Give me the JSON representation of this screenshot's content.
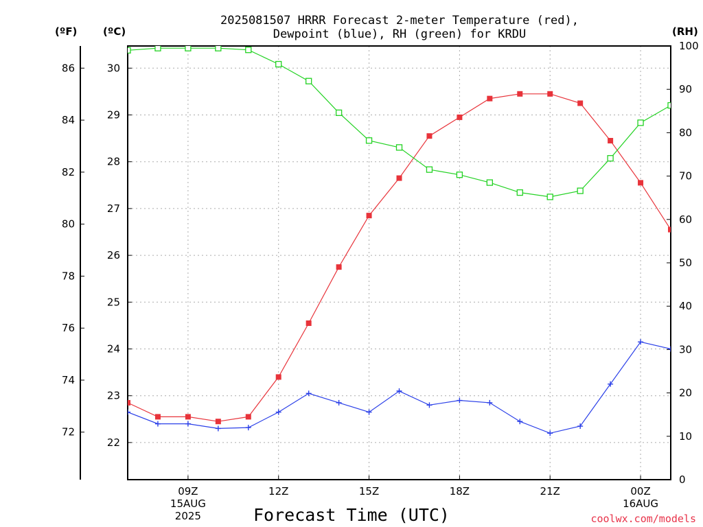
{
  "chart_data": {
    "type": "line",
    "title_lines": [
      "2025081507 HRRR Forecast 2-meter Temperature (red),",
      "Dewpoint (blue), RH (green) for KRDU"
    ],
    "xlabel": "Forecast Time (UTC)",
    "credit": "coolwx.com/models",
    "units": {
      "fahrenheit": "(ºF)",
      "celsius": "(ºC)",
      "rh": "(RH)"
    },
    "x_hours": [
      7,
      8,
      9,
      10,
      11,
      12,
      13,
      14,
      15,
      16,
      17,
      18,
      19,
      20,
      21,
      22,
      23,
      24,
      25
    ],
    "xlim": [
      7,
      25
    ],
    "x_ticks": [
      {
        "hour": 9,
        "lines": [
          "09Z",
          "15AUG",
          "2025"
        ]
      },
      {
        "hour": 12,
        "lines": [
          "12Z"
        ]
      },
      {
        "hour": 15,
        "lines": [
          "15Z"
        ]
      },
      {
        "hour": 18,
        "lines": [
          "18Z"
        ]
      },
      {
        "hour": 21,
        "lines": [
          "21Z"
        ]
      },
      {
        "hour": 24,
        "lines": [
          "00Z",
          "16AUG"
        ]
      }
    ],
    "y_celsius_ticks": [
      "22",
      "23",
      "24",
      "25",
      "26",
      "27",
      "28",
      "29",
      "30"
    ],
    "y_fahrenheit_ticks": [
      "72",
      "74",
      "76",
      "78",
      "80",
      "82",
      "84",
      "86"
    ],
    "y_rh_ticks": [
      "0",
      "10",
      "20",
      "30",
      "40",
      "50",
      "60",
      "70",
      "80",
      "90",
      "100"
    ],
    "ylim_celsius": [
      21.2,
      30.4
    ],
    "ylim_rh": [
      0,
      100
    ],
    "series": [
      {
        "name": "Temperature",
        "color": "#e8333a",
        "axis": "celsius",
        "marker": "filled-square",
        "values": [
          22.85,
          22.55,
          22.55,
          22.45,
          22.55,
          23.4,
          24.55,
          25.75,
          26.85,
          27.65,
          28.55,
          28.95,
          29.35,
          29.45,
          29.45,
          29.25,
          28.45,
          27.55,
          26.55
        ]
      },
      {
        "name": "Dewpoint",
        "color": "#2a3fe8",
        "axis": "celsius",
        "marker": "plus",
        "values": [
          22.65,
          22.4,
          22.4,
          22.3,
          22.32,
          22.65,
          23.05,
          22.85,
          22.65,
          23.1,
          22.8,
          22.9,
          22.85,
          22.45,
          22.2,
          22.35,
          23.25,
          24.15,
          24.0
        ]
      },
      {
        "name": "RH",
        "color": "#22d222",
        "axis": "rh",
        "marker": "open-square",
        "values": [
          99,
          99.5,
          99.5,
          99.5,
          99.1,
          95.8,
          91.9,
          84.6,
          78.2,
          76.6,
          71.5,
          70.3,
          68.5,
          66.2,
          65.2,
          66.6,
          74.1,
          82.3,
          86.3
        ]
      }
    ]
  }
}
